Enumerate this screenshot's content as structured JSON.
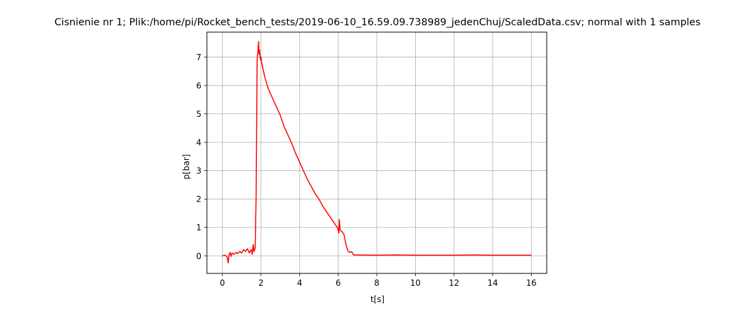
{
  "chart_data": {
    "type": "line",
    "title": "Cisnienie nr 1; Plik:/home/pi/Rocket_bench_tests/2019-06-10_16.59.09.738989_jedenChuj/ScaledData.csv; normal with 1 samples",
    "xlabel": "t[s]",
    "ylabel": "p[bar]",
    "xlim": [
      -0.8,
      16.8
    ],
    "ylim": [
      -0.62,
      7.88
    ],
    "xticks": [
      0,
      2,
      4,
      6,
      8,
      10,
      12,
      14,
      16
    ],
    "yticks": [
      0,
      1,
      2,
      3,
      4,
      5,
      6,
      7
    ],
    "grid": true,
    "colors": {
      "line": "#ff0000",
      "grid": "#b0b0b0",
      "axes": "#000000"
    },
    "series": [
      {
        "x": [
          0,
          0.15,
          0.25,
          0.3,
          0.35,
          0.4,
          0.45,
          0.5,
          0.6,
          0.7,
          0.8,
          0.9,
          1.0,
          1.1,
          1.2,
          1.3,
          1.4,
          1.5,
          1.55,
          1.6,
          1.65,
          1.7,
          1.75,
          1.8,
          1.85,
          1.88,
          1.9,
          1.93,
          1.97,
          2.0,
          2.05,
          2.1,
          2.15,
          2.2,
          2.3,
          2.4,
          2.5,
          2.6,
          2.8,
          3.0,
          3.2,
          3.4,
          3.6,
          3.8,
          4.0,
          4.2,
          4.4,
          4.6,
          4.8,
          5.0,
          5.2,
          5.4,
          5.6,
          5.8,
          5.95,
          6.0,
          6.03,
          6.06,
          6.1,
          6.2,
          6.3,
          6.4,
          6.5,
          6.6,
          6.7,
          6.8,
          7.0,
          8.0,
          9.0,
          10.0,
          11.0,
          12.0,
          13.0,
          14.0,
          15.0,
          16.0
        ],
        "values": [
          0,
          0.02,
          -0.05,
          -0.25,
          0.05,
          0.12,
          -0.02,
          0.1,
          0.05,
          0.12,
          0.08,
          0.15,
          0.1,
          0.22,
          0.15,
          0.25,
          0.1,
          0.22,
          0.05,
          0.4,
          0.15,
          0.3,
          2.2,
          6.9,
          7.3,
          7.55,
          7.1,
          7.25,
          6.9,
          7.0,
          6.75,
          6.6,
          6.45,
          6.3,
          6.05,
          5.85,
          5.7,
          5.55,
          5.25,
          4.95,
          4.55,
          4.25,
          3.95,
          3.6,
          3.3,
          3.0,
          2.7,
          2.45,
          2.2,
          2.0,
          1.75,
          1.55,
          1.35,
          1.15,
          1.0,
          0.9,
          0.8,
          1.28,
          0.9,
          0.85,
          0.75,
          0.4,
          0.18,
          0.12,
          0.14,
          0.03,
          0.03,
          0.02,
          0.03,
          0.02,
          0.02,
          0.02,
          0.03,
          0.02,
          0.02,
          0.02
        ]
      }
    ]
  }
}
